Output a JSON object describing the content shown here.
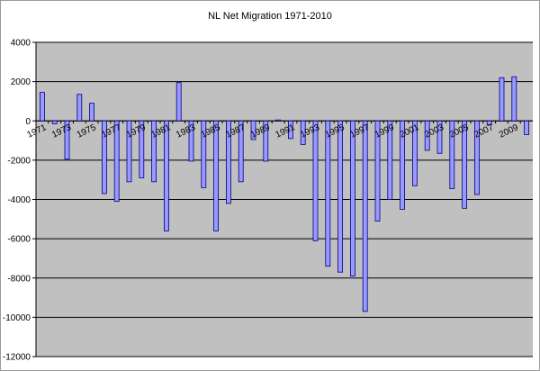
{
  "chart_data": {
    "type": "bar",
    "title": "NL Net Migration 1971-2010",
    "xlabel": "",
    "ylabel": "",
    "ylim": [
      -12000,
      4000
    ],
    "ytick_step": 2000,
    "ytick_labels": [
      "4000",
      "2000",
      "0",
      "-2000",
      "-4000",
      "-6000",
      "-8000",
      "-10000",
      "-12000"
    ],
    "grid": true,
    "legend": "none",
    "categories": [
      "1971",
      "1972",
      "1973",
      "1974",
      "1975",
      "1976",
      "1977",
      "1978",
      "1979",
      "1980",
      "1981",
      "1982",
      "1983",
      "1984",
      "1985",
      "1986",
      "1987",
      "1988",
      "1989",
      "1990",
      "1991",
      "1992",
      "1993",
      "1994",
      "1995",
      "1996",
      "1997",
      "1998",
      "1999",
      "2000",
      "2001",
      "2002",
      "2003",
      "2004",
      "2005",
      "2006",
      "2007",
      "2008",
      "2009",
      "2010"
    ],
    "tick_labels": [
      "1971",
      "",
      "1973",
      "",
      "1975",
      "",
      "1977",
      "",
      "1979",
      "",
      "1981",
      "",
      "1983",
      "",
      "1985",
      "",
      "1987",
      "",
      "1989",
      "",
      "1991",
      "",
      "1993",
      "",
      "1995",
      "",
      "1997",
      "",
      "1999",
      "",
      "2001",
      "",
      "2003",
      "",
      "2005",
      "",
      "2007",
      "",
      "2009",
      ""
    ],
    "values": [
      1450,
      -150,
      -1950,
      1350,
      900,
      -3700,
      -4100,
      -3100,
      -2900,
      -3100,
      -5600,
      1950,
      -2050,
      -3400,
      -5600,
      -4200,
      -3100,
      -950,
      -2050,
      50,
      -900,
      -1200,
      -6100,
      -7400,
      -7700,
      -7900,
      -9700,
      -5100,
      -4000,
      -4500,
      -3300,
      -1500,
      -1650,
      -3450,
      -4450,
      -3750,
      -200,
      2200,
      2250,
      -700
    ],
    "colors": {
      "plot_background": "#c0c0c0",
      "bar_fill": "#9999ff",
      "bar_stroke": "#000080",
      "gridline": "#000000"
    }
  }
}
